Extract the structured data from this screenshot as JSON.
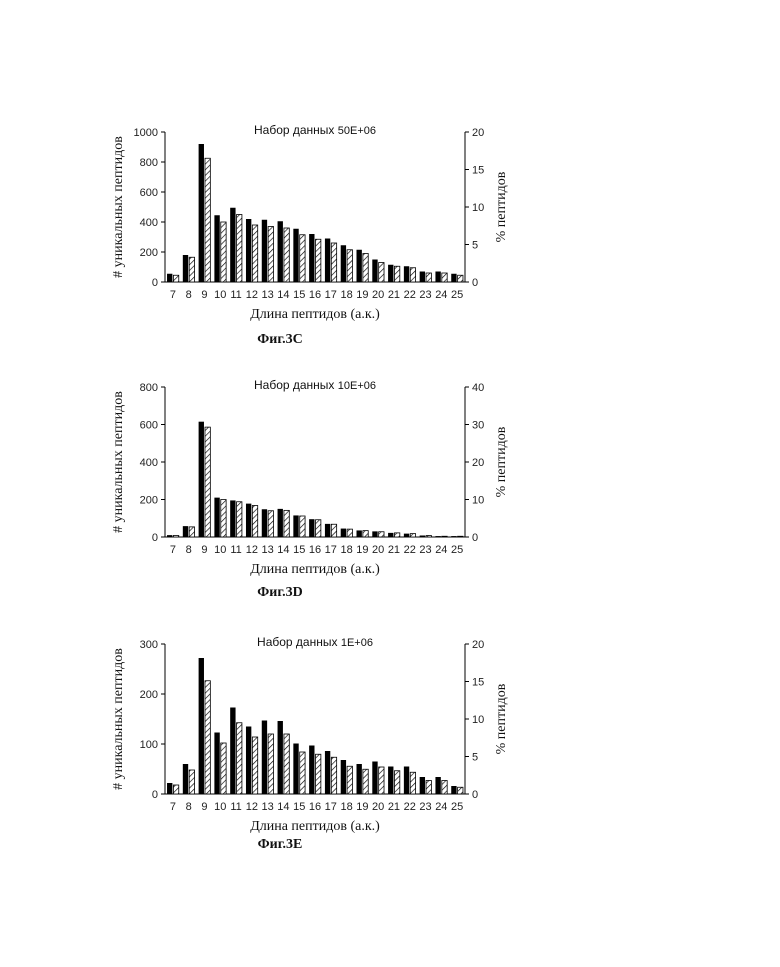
{
  "chart_data": [
    {
      "type": "bar",
      "title": "Набор данных",
      "dataset_label": "50E+06",
      "xlabel": "Длина пептидов (а.к.)",
      "ylabel": "# уникальных пептидов",
      "y2label": "% пептидов",
      "caption": "Фиг.3С",
      "ylim": [
        0,
        1000
      ],
      "y2lim": [
        0,
        20
      ],
      "yticks": [
        "0",
        "200",
        "400",
        "600",
        "800",
        "1000"
      ],
      "y2ticks": [
        "0",
        "5",
        "10",
        "15",
        "20"
      ],
      "categories": [
        "7",
        "8",
        "9",
        "10",
        "11",
        "12",
        "13",
        "14",
        "15",
        "16",
        "17",
        "18",
        "19",
        "20",
        "21",
        "22",
        "23",
        "24",
        "25"
      ],
      "series": [
        {
          "style": "solid",
          "axis": "left",
          "color": "#000000",
          "values": [
            55,
            180,
            920,
            445,
            495,
            420,
            415,
            405,
            355,
            320,
            290,
            245,
            215,
            150,
            115,
            105,
            70,
            70,
            55
          ]
        },
        {
          "style": "hatched",
          "axis": "right",
          "color": "#ffffff",
          "values": [
            0.9,
            3.3,
            16.5,
            8.0,
            9.0,
            7.6,
            7.4,
            7.2,
            6.3,
            5.7,
            5.2,
            4.3,
            3.8,
            2.6,
            2.1,
            1.9,
            1.2,
            1.2,
            0.9
          ]
        }
      ]
    },
    {
      "type": "bar",
      "title": "Набор данных",
      "dataset_label": "10E+06",
      "xlabel": "Длина пептидов (а.к.)",
      "ylabel": "# уникальных пептидов",
      "y2label": "% пептидов",
      "caption": "Фиг.3D",
      "ylim": [
        0,
        800
      ],
      "y2lim": [
        0,
        40
      ],
      "yticks": [
        "0",
        "200",
        "400",
        "600",
        "800"
      ],
      "y2ticks": [
        "0",
        "10",
        "20",
        "30",
        "40"
      ],
      "categories": [
        "7",
        "8",
        "9",
        "10",
        "11",
        "12",
        "13",
        "14",
        "15",
        "16",
        "17",
        "18",
        "19",
        "20",
        "21",
        "22",
        "23",
        "24",
        "25"
      ],
      "series": [
        {
          "style": "solid",
          "axis": "left",
          "color": "#000000",
          "values": [
            10,
            58,
            615,
            210,
            195,
            178,
            148,
            150,
            115,
            95,
            70,
            45,
            35,
            30,
            22,
            18,
            8,
            5,
            5
          ]
        },
        {
          "style": "hatched",
          "axis": "right",
          "color": "#ffffff",
          "values": [
            0.4,
            2.7,
            29.3,
            10.0,
            9.4,
            8.4,
            7.0,
            7.1,
            5.6,
            4.6,
            3.4,
            2.1,
            1.7,
            1.4,
            1.1,
            0.9,
            0.4,
            0.2,
            0.2
          ]
        }
      ]
    },
    {
      "type": "bar",
      "title": "Набор данных",
      "dataset_label": "1E+06",
      "xlabel": "Длина пептидов (а.к.)",
      "ylabel": "# уникальных пептидов",
      "y2label": "% пептидов",
      "caption": "Фиг.3Е",
      "ylim": [
        0,
        300
      ],
      "y2lim": [
        0,
        20
      ],
      "yticks": [
        "0",
        "100",
        "200",
        "300"
      ],
      "y2ticks": [
        "0",
        "5",
        "10",
        "15",
        "20"
      ],
      "categories": [
        "7",
        "8",
        "9",
        "10",
        "11",
        "12",
        "13",
        "14",
        "15",
        "16",
        "17",
        "18",
        "19",
        "20",
        "21",
        "22",
        "23",
        "24",
        "25"
      ],
      "series": [
        {
          "style": "solid",
          "axis": "left",
          "color": "#000000",
          "values": [
            22,
            60,
            272,
            123,
            173,
            135,
            147,
            146,
            101,
            97,
            86,
            68,
            60,
            65,
            55,
            55,
            34,
            34,
            16
          ]
        },
        {
          "style": "hatched",
          "axis": "right",
          "color": "#ffffff",
          "values": [
            1.2,
            3.2,
            15.1,
            6.8,
            9.5,
            7.6,
            8.0,
            8.0,
            5.6,
            5.3,
            4.9,
            3.7,
            3.3,
            3.6,
            3.1,
            2.9,
            1.8,
            1.8,
            0.9
          ]
        }
      ]
    }
  ]
}
